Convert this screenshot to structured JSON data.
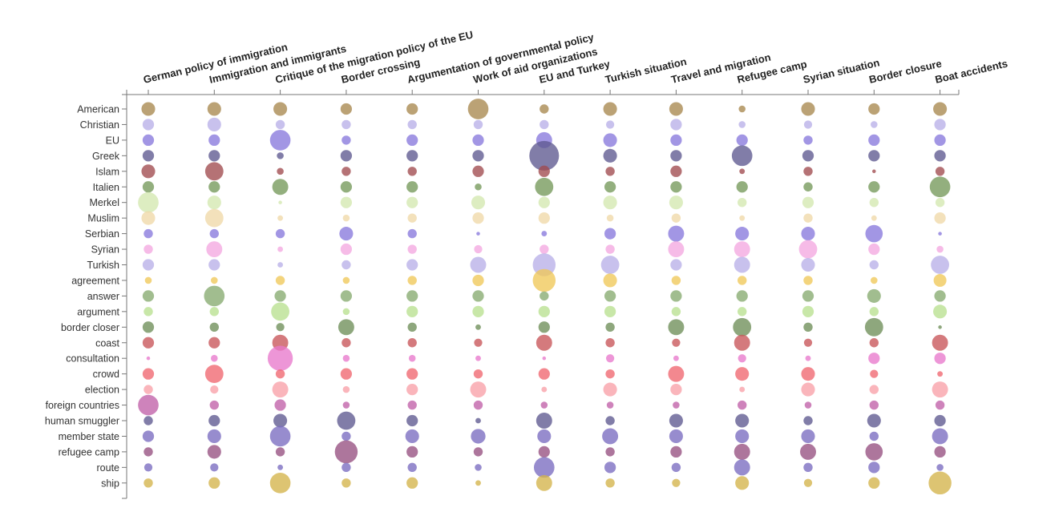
{
  "chart_data": {
    "type": "scatter",
    "title": "",
    "xlabel": "",
    "ylabel": "",
    "x_categories": [
      "German policy of immigration",
      "Immigration and immigrants",
      "Critique of the migration policy of the EU",
      "Border crossing",
      "Argumentation of governmental policy",
      "Work of aid organizations",
      "EU and Turkey",
      "Turkish situation",
      "Travel and migration",
      "Refugee camp",
      "Syrian situation",
      "Border closure",
      "Boat accidents"
    ],
    "y_categories": [
      "American",
      "Christian",
      "EU",
      "Greek",
      "Islam",
      "Italien",
      "Merkel",
      "Muslim",
      "Serbian",
      "Syrian",
      "Turkish",
      "agreement",
      "answer",
      "argument",
      "border closer",
      "coast",
      "consultation",
      "crowd",
      "election",
      "foreign countries",
      "human smuggler",
      "member state",
      "refugee camp",
      "route",
      "ship"
    ],
    "row_colors": [
      "#a8884e",
      "#b8b0e8",
      "#8878dc",
      "#5e5890",
      "#a04a4e",
      "#74985a",
      "#d4e8b0",
      "#f0d8a8",
      "#8878dc",
      "#f4a8e0",
      "#b8b0e8",
      "#f0c858",
      "#86aa70",
      "#b8e090",
      "#6e8e58",
      "#c85458",
      "#e878cc",
      "#f06670",
      "#f8a0a8",
      "#c060a8",
      "#5e5890",
      "#7a6cc0",
      "#965080",
      "#7a6cc0",
      "#d4b44a"
    ],
    "size_unit": "relative radius (1-5)",
    "sizes": [
      [
        3,
        3,
        3,
        2.5,
        2.5,
        4.5,
        2,
        3,
        3,
        1.5,
        3,
        2.5,
        3
      ],
      [
        2.5,
        3,
        2,
        2,
        2,
        2,
        2,
        1.8,
        2.5,
        1.5,
        1.8,
        1.5,
        2.5
      ],
      [
        2.5,
        2.5,
        4.5,
        2,
        2.5,
        2.5,
        3.5,
        3,
        2.5,
        2.5,
        2,
        2.5,
        2.5
      ],
      [
        2.5,
        2.5,
        1.5,
        2.5,
        2.5,
        2.5,
        6.5,
        3,
        2.5,
        4.5,
        2.5,
        2.5,
        2.5
      ],
      [
        3,
        4,
        1.5,
        2,
        2,
        2.5,
        2.5,
        2,
        2.5,
        1.2,
        2,
        0.8,
        2
      ],
      [
        2.5,
        2.5,
        3.5,
        2.5,
        2.5,
        1.5,
        4,
        2.5,
        2.5,
        2.5,
        2,
        2.5,
        4.5
      ],
      [
        4.5,
        3,
        0.8,
        2.5,
        2.5,
        3,
        2.5,
        3,
        3,
        2,
        2.5,
        2,
        2
      ],
      [
        3,
        4,
        1.2,
        1.5,
        2,
        2.5,
        2.5,
        1.5,
        2,
        1.2,
        2,
        1.2,
        2.5
      ],
      [
        2,
        2,
        2,
        3,
        2,
        0.8,
        1.2,
        2.5,
        3.5,
        3,
        3,
        3.8,
        0.8
      ],
      [
        2,
        3.5,
        1.2,
        2.5,
        2,
        1.8,
        2,
        2,
        3.5,
        3.5,
        4,
        2.5,
        1.5
      ],
      [
        2.5,
        2.5,
        1.2,
        2,
        2.5,
        3.5,
        5,
        4,
        2.5,
        3.5,
        3,
        2,
        4
      ],
      [
        1.5,
        1.5,
        2,
        1.5,
        2,
        2.5,
        5,
        3,
        2,
        2,
        2,
        1.5,
        2.8
      ],
      [
        2.5,
        4.5,
        2.5,
        2.5,
        2.5,
        2.5,
        2,
        2.5,
        2.5,
        2.5,
        2.5,
        3,
        2.5
      ],
      [
        2,
        2,
        4,
        1.5,
        2.5,
        2.5,
        2.5,
        2.5,
        2,
        2,
        2.5,
        2,
        3
      ],
      [
        2.5,
        2,
        1.8,
        3.5,
        2,
        1.2,
        2.5,
        2,
        3.5,
        4,
        2,
        4,
        0.8
      ],
      [
        2.5,
        2.5,
        3.5,
        2,
        2,
        1.8,
        3.5,
        2,
        1.8,
        3.5,
        1.8,
        2,
        3.5
      ],
      [
        0.8,
        1.5,
        5.5,
        1.5,
        1.5,
        1.2,
        0.8,
        1.8,
        1.2,
        1.8,
        1.2,
        2.5,
        2.5
      ],
      [
        2.5,
        4,
        2,
        2.5,
        2.5,
        2,
        2.5,
        2,
        3.5,
        3,
        3,
        1.8,
        1.2
      ],
      [
        2,
        1.8,
        3.5,
        1.5,
        2.5,
        3.5,
        1.2,
        3,
        2.5,
        1.2,
        3,
        2,
        3.5
      ],
      [
        4.5,
        2,
        2.5,
        1.5,
        2,
        2,
        1.5,
        1.5,
        1.5,
        2,
        1.5,
        2,
        2
      ],
      [
        2,
        2.5,
        3,
        4,
        2.5,
        1.2,
        3.5,
        2,
        3,
        3,
        2,
        3,
        2.5
      ],
      [
        2.5,
        3,
        4.5,
        2,
        3,
        3.2,
        3,
        3.5,
        3,
        3,
        3,
        2,
        3.5
      ],
      [
        2,
        3,
        2,
        5,
        2.5,
        2,
        2.5,
        2,
        2.5,
        3.5,
        3.5,
        3.8,
        2.5
      ],
      [
        1.8,
        1.8,
        1.2,
        2,
        2,
        1.5,
        4.5,
        2.5,
        2,
        3.5,
        2,
        2.5,
        1.5
      ],
      [
        2,
        2.5,
        4.5,
        2,
        2.5,
        1.2,
        3.5,
        2,
        1.8,
        3,
        1.8,
        2.5,
        5
      ]
    ],
    "grid": false,
    "legend": "none"
  }
}
